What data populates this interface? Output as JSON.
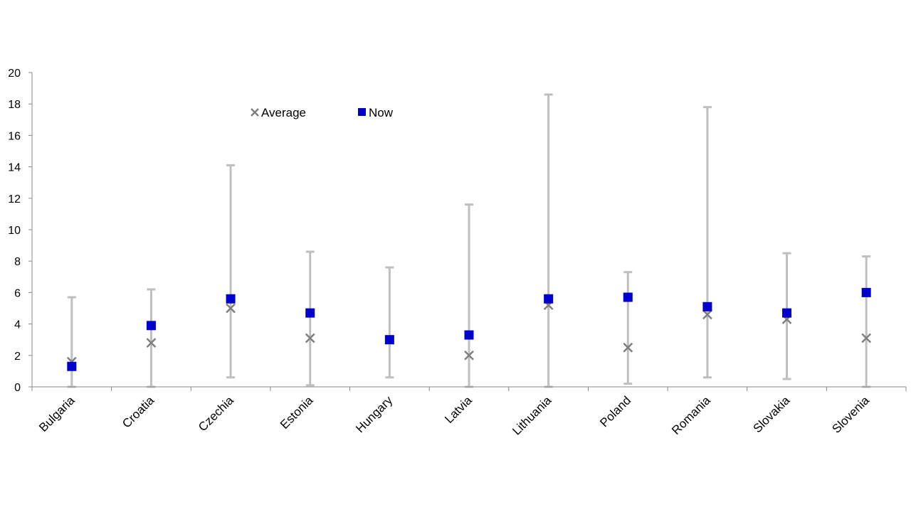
{
  "chart_data": {
    "type": "scatter",
    "title": "",
    "xlabel": "",
    "ylabel": "",
    "ylim": [
      0,
      20
    ],
    "yticks": [
      0,
      2,
      4,
      6,
      8,
      10,
      12,
      14,
      16,
      18,
      20
    ],
    "grid": false,
    "legend_position": "top-left",
    "categories": [
      "Bulgaria",
      "Croatia",
      "Czechia",
      "Estonia",
      "Hungary",
      "Latvia",
      "Lithuania",
      "Poland",
      "Romania",
      "Slovakia",
      "Slovenia"
    ],
    "range": {
      "low": [
        0.0,
        0.0,
        0.6,
        0.1,
        0.6,
        0.0,
        0.0,
        0.2,
        0.6,
        0.5,
        0.0
      ],
      "high": [
        5.7,
        6.2,
        14.1,
        8.6,
        7.6,
        11.6,
        18.6,
        7.3,
        17.8,
        8.5,
        8.3
      ],
      "color": "#bfbfbf"
    },
    "series": [
      {
        "name": "Average",
        "marker": "x",
        "color": "#7f7f7f",
        "values": [
          1.6,
          2.8,
          5.0,
          3.1,
          3.0,
          2.0,
          5.2,
          2.5,
          4.6,
          4.3,
          3.1
        ]
      },
      {
        "name": "Now",
        "marker": "square",
        "color": "#0000cc",
        "values": [
          1.3,
          3.9,
          5.6,
          4.7,
          3.0,
          3.3,
          5.6,
          5.7,
          5.1,
          4.7,
          6.0
        ]
      }
    ]
  }
}
